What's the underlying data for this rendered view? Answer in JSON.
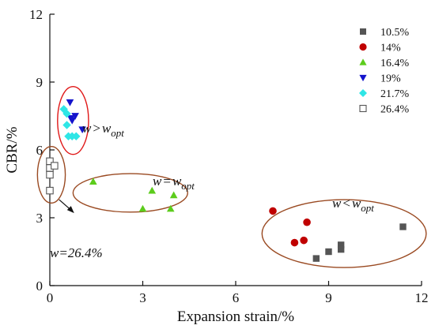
{
  "chart_data": {
    "type": "scatter",
    "xlabel": "Expansion strain/%",
    "ylabel": "CBR/%",
    "xlim": [
      0,
      12
    ],
    "ylim": [
      0,
      12
    ],
    "x_ticks": [
      0,
      3,
      6,
      9,
      12
    ],
    "y_ticks": [
      0,
      3,
      6,
      9,
      12
    ],
    "x_tick_labels": [
      "0",
      "3",
      "6",
      "9",
      "12"
    ],
    "y_tick_labels": [
      "0",
      "3",
      "6",
      "9",
      "12"
    ],
    "grid": false,
    "legend_position": "top-right",
    "series": [
      {
        "name": "10.5%",
        "marker": "square",
        "color": "#555555",
        "points": [
          [
            8.6,
            1.2
          ],
          [
            9.0,
            1.5
          ],
          [
            9.4,
            1.8
          ],
          [
            9.4,
            1.6
          ],
          [
            11.4,
            2.6
          ]
        ]
      },
      {
        "name": "14%",
        "marker": "circle",
        "color": "#c00000",
        "points": [
          [
            7.2,
            3.3
          ],
          [
            8.3,
            2.8
          ],
          [
            8.2,
            2.0
          ],
          [
            7.9,
            1.9
          ]
        ]
      },
      {
        "name": "16.4%",
        "marker": "triangle-up",
        "color": "#5ccc1c",
        "points": [
          [
            1.4,
            4.6
          ],
          [
            3.3,
            4.2
          ],
          [
            4.0,
            4.0
          ],
          [
            3.0,
            3.4
          ],
          [
            3.9,
            3.4
          ]
        ]
      },
      {
        "name": "19%",
        "marker": "triangle-down",
        "color": "#1414cc",
        "points": [
          [
            0.65,
            8.1
          ],
          [
            0.72,
            7.3
          ],
          [
            0.68,
            7.4
          ],
          [
            0.82,
            7.5
          ],
          [
            1.05,
            6.9
          ]
        ]
      },
      {
        "name": "21.7%",
        "marker": "diamond",
        "color": "#2ee6e6",
        "points": [
          [
            0.45,
            7.8
          ],
          [
            0.55,
            7.6
          ],
          [
            0.55,
            7.1
          ],
          [
            0.6,
            6.6
          ],
          [
            0.72,
            6.6
          ],
          [
            0.85,
            6.6
          ]
        ]
      },
      {
        "name": "26.4%",
        "marker": "open-square",
        "color": "#555555",
        "points": [
          [
            0.0,
            5.5
          ],
          [
            0.0,
            5.2
          ],
          [
            0.15,
            5.3
          ],
          [
            0.0,
            4.9
          ],
          [
            0.0,
            4.2
          ]
        ]
      }
    ],
    "groups": [
      {
        "label_var": "w",
        "label_rel": ">",
        "label_sub": "opt",
        "ellipse_center": [
          0.75,
          7.3
        ],
        "ellipse_radii": [
          0.5,
          1.5
        ],
        "ellipse_color": "#e01818"
      },
      {
        "label_var": "w",
        "label_rel": "=",
        "label_sub": "opt",
        "ellipse_center": [
          2.6,
          4.1
        ],
        "ellipse_radii": [
          1.85,
          0.85
        ],
        "ellipse_color": "#9a4a22"
      },
      {
        "label_var": "w",
        "label_rel": "<",
        "label_sub": "opt",
        "ellipse_center": [
          9.5,
          2.3
        ],
        "ellipse_radii": [
          2.65,
          1.5
        ],
        "ellipse_color": "#9a4a22"
      },
      {
        "label_text": "w=26.4%",
        "ellipse_center": [
          0.05,
          4.9
        ],
        "ellipse_radii": [
          0.45,
          1.25
        ],
        "ellipse_color": "#9a4a22"
      }
    ]
  }
}
